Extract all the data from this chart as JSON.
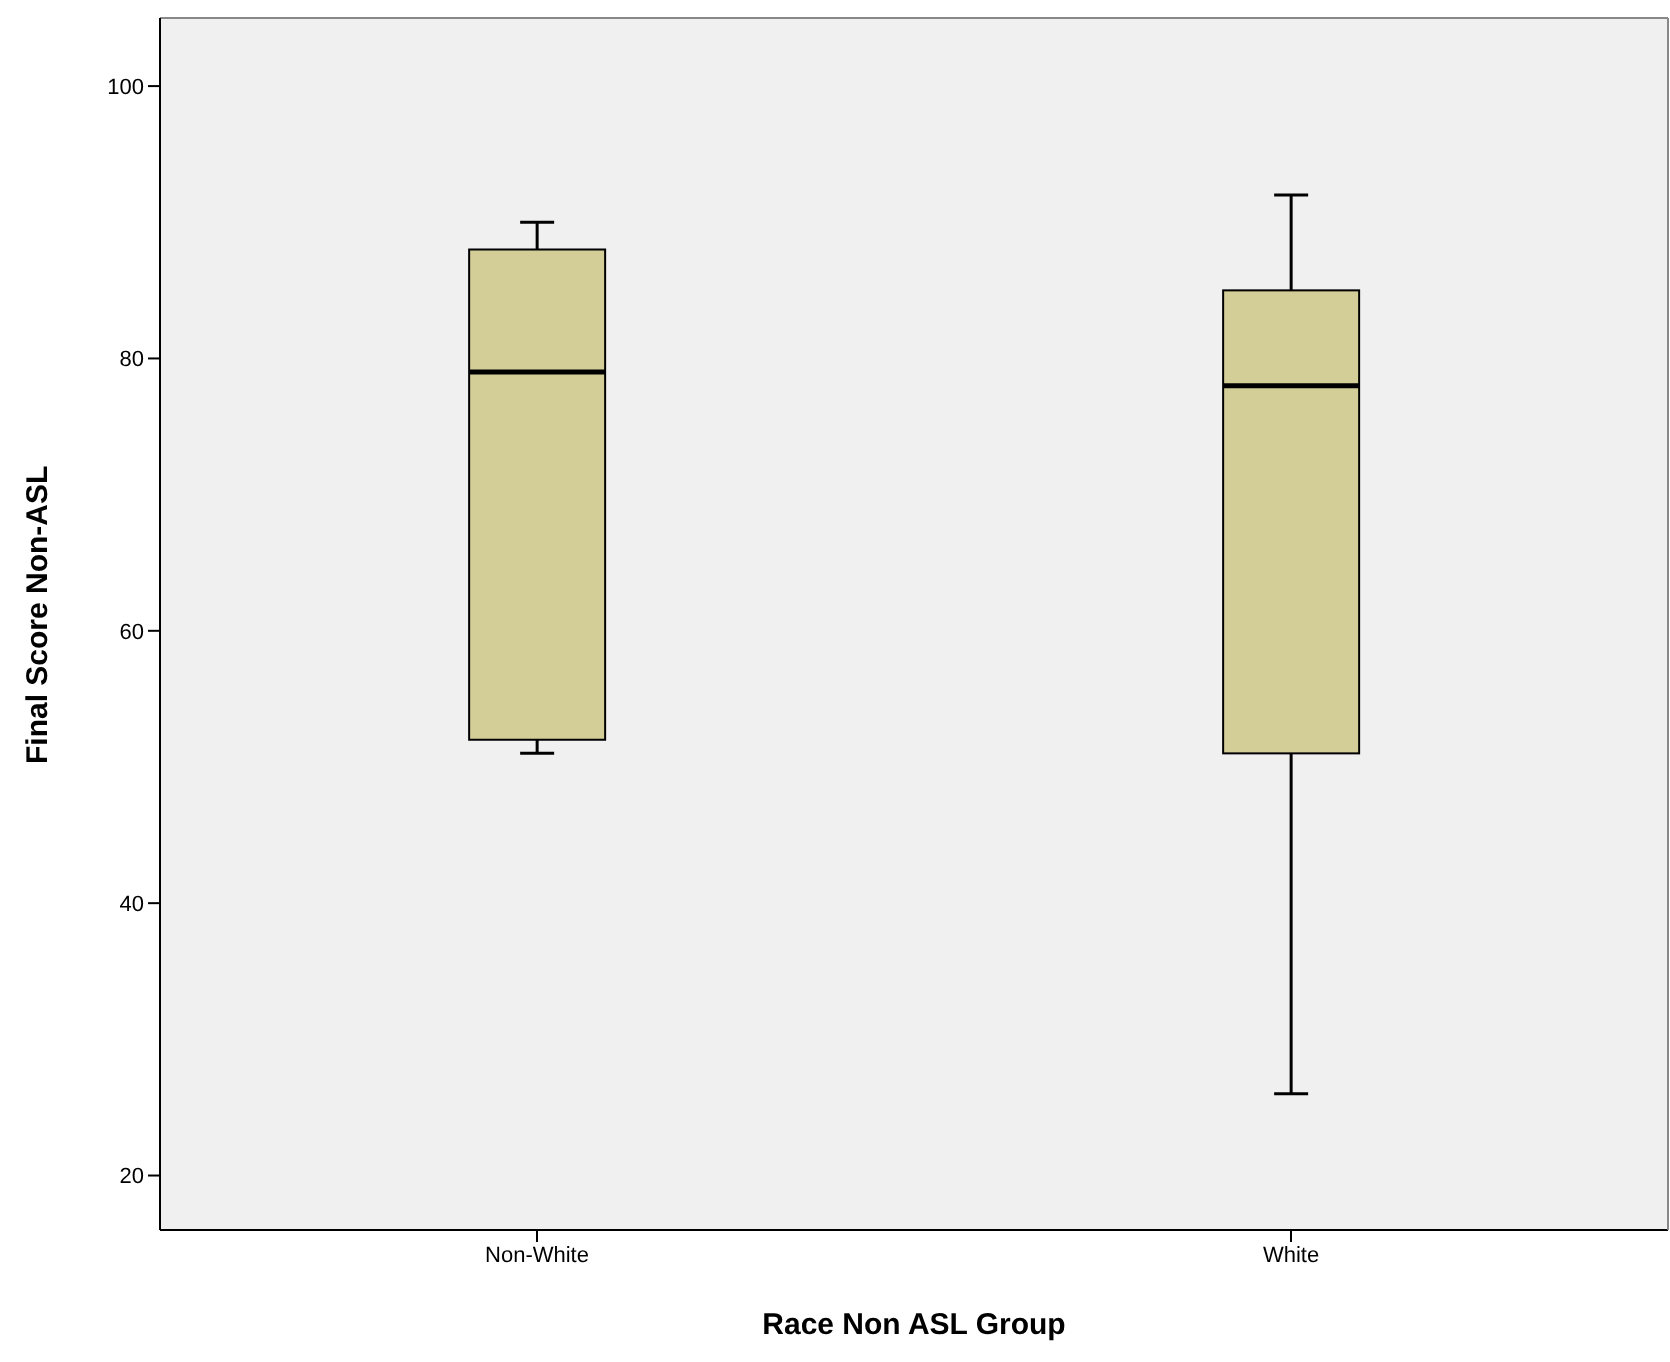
{
  "chart_data": {
    "type": "box",
    "xlabel": "Race Non ASL Group",
    "ylabel": "Final Score Non-ASL",
    "categories": [
      "Non-White",
      "White"
    ],
    "boxes": [
      {
        "low": 51,
        "q1": 52,
        "median": 79,
        "q3": 88,
        "high": 90
      },
      {
        "low": 26,
        "q1": 51,
        "median": 78,
        "q3": 85,
        "high": 92
      }
    ],
    "color": "#d3ce97",
    "ylim": [
      16,
      105
    ],
    "yticks": [
      20,
      40,
      60,
      80,
      100
    ],
    "grid": false,
    "legend": false
  }
}
